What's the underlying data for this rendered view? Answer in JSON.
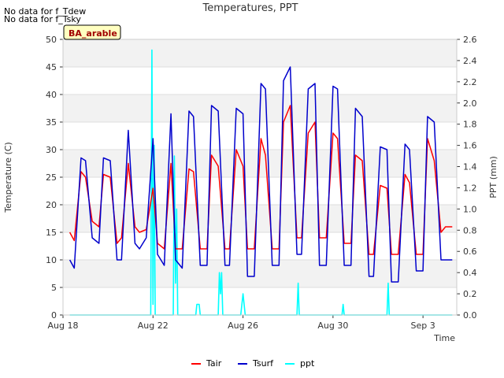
{
  "notes": [
    "No data for f_Tdew",
    "No data for f_Tsky"
  ],
  "badge": "BA_arable",
  "chart_data": {
    "type": "line",
    "title": "Temperatures, PPT",
    "xlabel": "Time",
    "ylabel": "Temperature (C)",
    "y2label": "PPT (mm)",
    "xlim": [
      18,
      35.5
    ],
    "ylim": [
      0,
      50
    ],
    "y2lim": [
      0,
      2.6
    ],
    "xticks": [
      {
        "v": 18,
        "label": "Aug 18"
      },
      {
        "v": 22,
        "label": "Aug 22"
      },
      {
        "v": 26,
        "label": "Aug 26"
      },
      {
        "v": 30,
        "label": "Aug 30"
      },
      {
        "v": 34,
        "label": "Sep 3"
      }
    ],
    "yticks": [
      0,
      5,
      10,
      15,
      20,
      25,
      30,
      35,
      40,
      45,
      50
    ],
    "y2ticks": [
      "0.0",
      "0.2",
      "0.4",
      "0.6",
      "0.8",
      "1.0",
      "1.2",
      "1.4",
      "1.6",
      "1.8",
      "2.0",
      "2.2",
      "2.4",
      "2.6"
    ],
    "legend": [
      {
        "name": "Tair",
        "color": "#ff0000"
      },
      {
        "name": "Tsurf",
        "color": "#0000cc"
      },
      {
        "name": "ppt",
        "color": "#00ffff"
      }
    ],
    "series": [
      {
        "name": "Tair",
        "color": "#ff0000",
        "axis": "left",
        "x": [
          18.3,
          18.5,
          18.8,
          19.0,
          19.3,
          19.6,
          19.8,
          20.1,
          20.4,
          20.6,
          20.9,
          21.2,
          21.4,
          21.7,
          22.0,
          22.2,
          22.5,
          22.8,
          23.0,
          23.3,
          23.6,
          23.8,
          24.1,
          24.4,
          24.6,
          24.9,
          25.2,
          25.4,
          25.7,
          26.0,
          26.2,
          26.5,
          26.8,
          27.0,
          27.3,
          27.6,
          27.8,
          28.1,
          28.4,
          28.6,
          28.9,
          29.2,
          29.4,
          29.7,
          30.0,
          30.2,
          30.5,
          30.8,
          31.0,
          31.3,
          31.6,
          31.8,
          32.1,
          32.4,
          32.6,
          32.9,
          33.2,
          33.4,
          33.7,
          34.0,
          34.2,
          34.5,
          34.8,
          35.0,
          35.3
        ],
        "values": [
          15,
          13.5,
          26,
          25,
          17,
          16,
          25.5,
          25,
          13,
          14,
          27.5,
          16,
          15,
          15.5,
          23,
          13,
          12,
          27.5,
          12,
          12,
          26.5,
          26,
          12,
          12,
          29,
          27,
          12,
          12,
          30,
          27,
          12,
          12,
          32,
          29,
          12,
          12,
          35,
          38,
          14,
          14,
          33,
          35,
          14,
          14,
          33,
          32,
          13,
          13,
          29,
          28,
          11,
          11,
          23.5,
          23,
          11,
          11,
          25.5,
          24,
          11,
          11,
          32,
          28,
          15,
          16,
          16
        ]
      },
      {
        "name": "Tsurf",
        "color": "#0000cc",
        "axis": "left",
        "x": [
          18.3,
          18.5,
          18.8,
          19.0,
          19.3,
          19.6,
          19.8,
          20.1,
          20.4,
          20.6,
          20.9,
          21.2,
          21.4,
          21.7,
          22.0,
          22.2,
          22.5,
          22.8,
          23.0,
          23.3,
          23.6,
          23.8,
          24.1,
          24.4,
          24.6,
          24.9,
          25.2,
          25.4,
          25.7,
          26.0,
          26.2,
          26.5,
          26.8,
          27.0,
          27.3,
          27.6,
          27.8,
          28.1,
          28.4,
          28.6,
          28.9,
          29.2,
          29.4,
          29.7,
          30.0,
          30.2,
          30.5,
          30.8,
          31.0,
          31.3,
          31.6,
          31.8,
          32.1,
          32.4,
          32.6,
          32.9,
          33.2,
          33.4,
          33.7,
          34.0,
          34.2,
          34.5,
          34.8,
          35.0,
          35.3
        ],
        "values": [
          10,
          8.5,
          28.5,
          28,
          14,
          13,
          28.5,
          28,
          10,
          10,
          33.5,
          13,
          12,
          14,
          32,
          11,
          9,
          36.5,
          10,
          8.5,
          37,
          36,
          9,
          9,
          38,
          37,
          9,
          9,
          37.5,
          36.5,
          7,
          7,
          42,
          41,
          9,
          9,
          42.5,
          45,
          11,
          11,
          41,
          42,
          9,
          9,
          41.5,
          41,
          9,
          9,
          37.5,
          36,
          7,
          7,
          30.5,
          30,
          6,
          6,
          31,
          30,
          8,
          8,
          36,
          35,
          10,
          10,
          10
        ]
      },
      {
        "name": "ppt",
        "color": "#00ffff",
        "axis": "right",
        "x": [
          18.3,
          21.9,
          21.95,
          22.0,
          22.05,
          22.1,
          22.9,
          22.95,
          23.0,
          23.05,
          23.1,
          23.9,
          23.95,
          24.05,
          24.1,
          24.9,
          24.95,
          25.0,
          25.05,
          25.1,
          25.9,
          26.0,
          26.1,
          28.4,
          28.45,
          28.5,
          30.4,
          30.45,
          30.5,
          32.4,
          32.45,
          32.5,
          35.3
        ],
        "values": [
          0,
          0,
          2.5,
          0.1,
          1.6,
          0,
          0,
          1.5,
          0.3,
          1.0,
          0,
          0,
          0.1,
          0.1,
          0,
          0,
          0.4,
          0.2,
          0.4,
          0,
          0,
          0.2,
          0,
          0,
          0.3,
          0,
          0,
          0.1,
          0,
          0,
          0.3,
          0,
          0
        ]
      }
    ]
  }
}
